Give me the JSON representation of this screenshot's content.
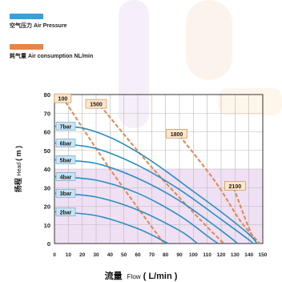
{
  "legend": [
    {
      "label": "空气压力 Air Pressure",
      "color": "#3aa0d8"
    },
    {
      "label": "耗气量 Air consumption NL/min",
      "color": "#e8844a"
    }
  ],
  "chart_data": {
    "type": "line",
    "xlabel_main": "流量",
    "xlabel_sub": "Flow",
    "xlabel_unit": "( L/min )",
    "ylabel_main": "扬程",
    "ylabel_sub": "Head",
    "ylabel_unit": "( m )",
    "xlim": [
      0,
      150
    ],
    "ylim": [
      0,
      80
    ],
    "xticks": [
      0,
      10,
      20,
      30,
      40,
      50,
      60,
      70,
      80,
      90,
      100,
      110,
      120,
      130,
      140,
      150
    ],
    "xtick_labels": [
      "0",
      "10",
      "20",
      "30",
      "40",
      "50",
      "60",
      "70",
      "80",
      "90",
      "100",
      "110",
      "120",
      "130",
      "140",
      "150"
    ],
    "yticks": [
      0,
      10,
      20,
      30,
      40,
      50,
      60,
      70,
      80
    ],
    "grid": true,
    "pressure_color": "#2a8fc4",
    "consumption_color": "#e0874f",
    "pressure_series": [
      {
        "label": "7bar",
        "points": [
          [
            0,
            63
          ],
          [
            20,
            62
          ],
          [
            40,
            57
          ],
          [
            60,
            49
          ],
          [
            80,
            39
          ],
          [
            100,
            28
          ],
          [
            120,
            17
          ],
          [
            140,
            5
          ],
          [
            146,
            0
          ]
        ]
      },
      {
        "label": "6bar",
        "points": [
          [
            0,
            54
          ],
          [
            30,
            51
          ],
          [
            60,
            42
          ],
          [
            90,
            29
          ],
          [
            120,
            13
          ],
          [
            140,
            2
          ],
          [
            143,
            0
          ]
        ]
      },
      {
        "label": "5bar",
        "points": [
          [
            0,
            45
          ],
          [
            30,
            43
          ],
          [
            60,
            35
          ],
          [
            90,
            23
          ],
          [
            120,
            7
          ],
          [
            132,
            0
          ]
        ]
      },
      {
        "label": "4bar",
        "points": [
          [
            0,
            36
          ],
          [
            30,
            34
          ],
          [
            60,
            27
          ],
          [
            90,
            15
          ],
          [
            112,
            3
          ],
          [
            118,
            0
          ]
        ]
      },
      {
        "label": "3bar",
        "points": [
          [
            0,
            27
          ],
          [
            30,
            25
          ],
          [
            60,
            18
          ],
          [
            90,
            7
          ],
          [
            103,
            0
          ]
        ]
      },
      {
        "label": "2bar",
        "points": [
          [
            0,
            17
          ],
          [
            30,
            15
          ],
          [
            60,
            8
          ],
          [
            82,
            0
          ]
        ]
      }
    ],
    "consumption_series": [
      {
        "label": "100",
        "points": [
          [
            8,
            76
          ],
          [
            40,
            40
          ],
          [
            75,
            4
          ],
          [
            80,
            0
          ]
        ]
      },
      {
        "label": "1500",
        "points": [
          [
            33,
            74
          ],
          [
            70,
            41
          ],
          [
            106,
            12
          ],
          [
            122,
            0
          ]
        ]
      },
      {
        "label": "1800",
        "points": [
          [
            90,
            58
          ],
          [
            116,
            33
          ],
          [
            134,
            12
          ],
          [
            148,
            0
          ]
        ]
      },
      {
        "label": "2100",
        "points": [
          [
            129,
            30
          ],
          [
            136,
            16
          ],
          [
            142,
            5
          ],
          [
            146,
            0
          ]
        ]
      }
    ],
    "curve_label_pos": [
      {
        "text": "100",
        "x": 6,
        "y": 78
      },
      {
        "text": "1500",
        "x": 30,
        "y": 75
      },
      {
        "text": "1800",
        "x": 88,
        "y": 59
      },
      {
        "text": "2100",
        "x": 130,
        "y": 31
      }
    ]
  }
}
